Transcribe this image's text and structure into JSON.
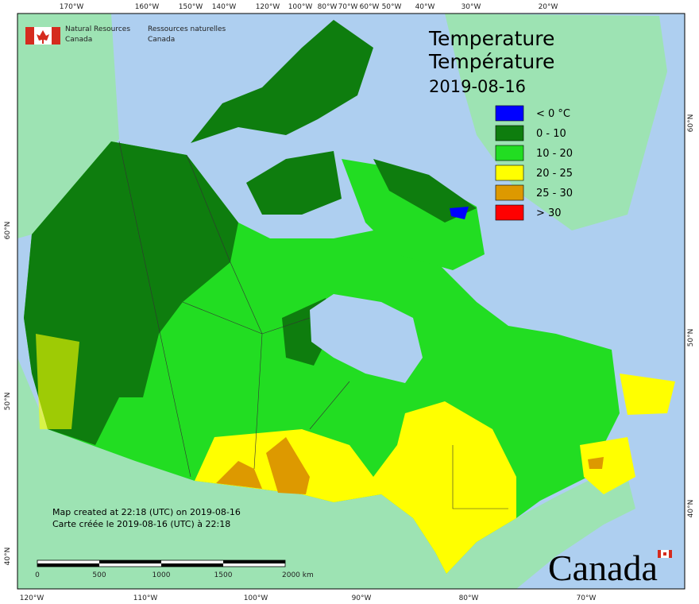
{
  "agency": {
    "en": [
      "Natural Resources",
      "Canada"
    ],
    "fr": [
      "Ressources naturelles",
      "Canada"
    ]
  },
  "title": {
    "en": "Temperature",
    "fr": "Température",
    "date": "2019-08-16"
  },
  "legend": [
    {
      "label": "< 0 °C",
      "color": "#0000ff"
    },
    {
      "label": "0 - 10",
      "color": "#0e7d0e"
    },
    {
      "label": "10 - 20",
      "color": "#22dd22"
    },
    {
      "label": "20 - 25",
      "color": "#ffff00"
    },
    {
      "label": "25 - 30",
      "color": "#dd9900"
    },
    {
      "label": "> 30",
      "color": "#ff0000"
    }
  ],
  "graticule": {
    "top": [
      "170°W",
      "160°W",
      "150°W",
      "140°W",
      "120°W",
      "100°W",
      "80°W",
      "70°W",
      "60°W",
      "50°W",
      "40°W",
      "30°W",
      "20°W"
    ],
    "bottom": [
      "120°W",
      "110°W",
      "100°W",
      "90°W",
      "80°W",
      "70°W"
    ],
    "left": [
      "60°N",
      "50°N",
      "40°N"
    ],
    "right": [
      "60°N",
      "50°N",
      "40°N"
    ]
  },
  "credits": [
    "Map created at 22:18 (UTC) on 2019-08-16",
    "Carte créée le 2019-08-16 (UTC) à 22:18"
  ],
  "scale_bar": [
    "0",
    "500",
    "1000",
    "1500",
    "2000 km"
  ],
  "wordmark": "Canada"
}
